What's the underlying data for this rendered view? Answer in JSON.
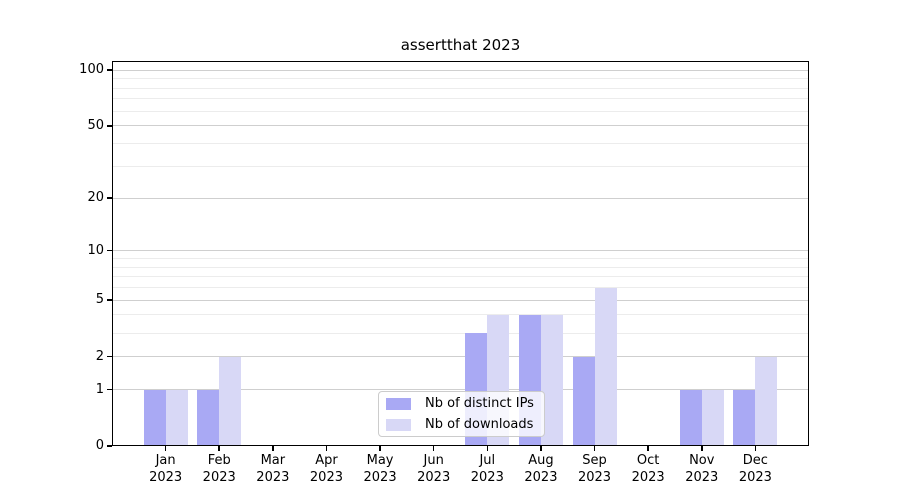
{
  "title": "assertthat 2023",
  "chart_data": {
    "type": "bar",
    "title": "assertthat 2023",
    "categories": [
      "Jan",
      "Feb",
      "Mar",
      "Apr",
      "May",
      "Jun",
      "Jul",
      "Aug",
      "Sep",
      "Oct",
      "Nov",
      "Dec"
    ],
    "category_year": "2023",
    "series": [
      {
        "name": "Nb of distinct IPs",
        "color": "#a9a9f4",
        "values": [
          1,
          1,
          0,
          0,
          0,
          0,
          3,
          4,
          2,
          0,
          1,
          1
        ]
      },
      {
        "name": "Nb of downloads",
        "color": "#d8d8f6",
        "values": [
          1,
          2,
          0,
          0,
          0,
          0,
          4,
          4,
          6,
          0,
          1,
          2
        ]
      }
    ],
    "yscale": "log1p",
    "ylim": [
      0,
      112
    ],
    "y_ticks": [
      0,
      1,
      2,
      5,
      10,
      20,
      50,
      100
    ],
    "y_minor_ticks": [
      3,
      4,
      6,
      7,
      8,
      9,
      30,
      40,
      60,
      70,
      80,
      90
    ],
    "grid": true,
    "legend_position": "lower center",
    "xlabel": "",
    "ylabel": ""
  }
}
